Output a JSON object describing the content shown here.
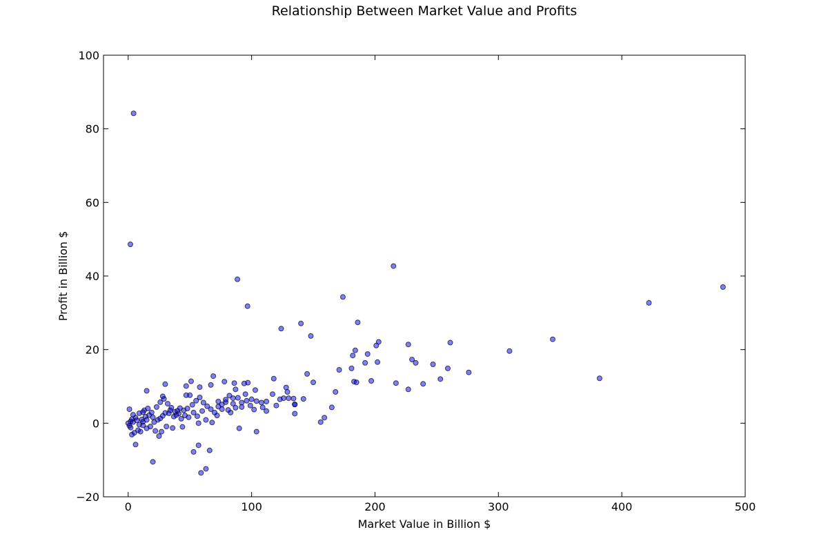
{
  "chart_data": {
    "type": "scatter",
    "title": "Relationship Between Market Value and Profits",
    "xlabel": "Market Value in Billion $",
    "ylabel": "Profit in Billion $",
    "xlim": [
      -20,
      500
    ],
    "ylim": [
      -20,
      100
    ],
    "xticks": [
      0,
      100,
      200,
      300,
      400,
      500
    ],
    "yticks": [
      -20,
      0,
      20,
      40,
      60,
      80,
      100
    ],
    "xtick_labels": [
      "0",
      "100",
      "200",
      "300",
      "400",
      "500"
    ],
    "ytick_labels": [
      "−20",
      "0",
      "20",
      "40",
      "60",
      "80",
      "100"
    ],
    "grid": false,
    "marker_color": "#0000ff",
    "marker_alpha": 0.5,
    "series": [
      {
        "points": [
          [
            4.4,
            84.2
          ],
          [
            1.8,
            48.6
          ],
          [
            215,
            42.7
          ],
          [
            482,
            37.0
          ],
          [
            422,
            32.7
          ],
          [
            88.5,
            39.1
          ],
          [
            96.7,
            31.8
          ],
          [
            174,
            34.3
          ],
          [
            140,
            27.1
          ],
          [
            124,
            25.7
          ],
          [
            148,
            23.7
          ],
          [
            344,
            22.8
          ],
          [
            261,
            21.9
          ],
          [
            203,
            22.1
          ],
          [
            227,
            21.4
          ],
          [
            186,
            27.4
          ],
          [
            201,
            21.1
          ],
          [
            309,
            19.6
          ],
          [
            184,
            19.8
          ],
          [
            194,
            18.8
          ],
          [
            182,
            18.4
          ],
          [
            230,
            17.3
          ],
          [
            233,
            16.4
          ],
          [
            202,
            16.6
          ],
          [
            192,
            16.4
          ],
          [
            247,
            16.0
          ],
          [
            259,
            14.9
          ],
          [
            276,
            13.8
          ],
          [
            181,
            14.9
          ],
          [
            171,
            14.5
          ],
          [
            253,
            12.0
          ],
          [
            382,
            12.2
          ],
          [
            197,
            11.5
          ],
          [
            183,
            11.3
          ],
          [
            185,
            11.1
          ],
          [
            217,
            10.9
          ],
          [
            239,
            10.7
          ],
          [
            227,
            9.2
          ],
          [
            145,
            13.4
          ],
          [
            150,
            11.1
          ],
          [
            128,
            9.7
          ],
          [
            129,
            8.5
          ],
          [
            168,
            8.5
          ],
          [
            142,
            6.6
          ],
          [
            134,
            6.7
          ],
          [
            135,
            5.1
          ],
          [
            165,
            4.3
          ],
          [
            135,
            2.6
          ],
          [
            159,
            1.5
          ],
          [
            156,
            0.3
          ],
          [
            118,
            12.1
          ],
          [
            97,
            11.0
          ],
          [
            94,
            10.8
          ],
          [
            86,
            10.9
          ],
          [
            78,
            11.3
          ],
          [
            69,
            12.8
          ],
          [
            67,
            10.4
          ],
          [
            58,
            9.8
          ],
          [
            51,
            11.4
          ],
          [
            47,
            10.1
          ],
          [
            30,
            10.6
          ],
          [
            15,
            8.8
          ],
          [
            87,
            9.2
          ],
          [
            95,
            7.9
          ],
          [
            100,
            6.5
          ],
          [
            104,
            6.0
          ],
          [
            108,
            5.6
          ],
          [
            112,
            5.9
          ],
          [
            117,
            7.9
          ],
          [
            120,
            4.8
          ],
          [
            123,
            6.5
          ],
          [
            126,
            6.8
          ],
          [
            130,
            6.8
          ],
          [
            135,
            5.1
          ],
          [
            109,
            4.3
          ],
          [
            112,
            3.3
          ],
          [
            102,
            3.7
          ],
          [
            92,
            4.4
          ],
          [
            83,
            2.9
          ],
          [
            76,
            3.8
          ],
          [
            72,
            2.1
          ],
          [
            68,
            0.2
          ],
          [
            63,
            0.9
          ],
          [
            57,
            0.0
          ],
          [
            73,
            5.9
          ],
          [
            79,
            5.7
          ],
          [
            85,
            6.8
          ],
          [
            89,
            6.9
          ],
          [
            92,
            5.6
          ],
          [
            96,
            6.1
          ],
          [
            99,
            4.8
          ],
          [
            103,
            9.0
          ],
          [
            81,
            3.6
          ],
          [
            87,
            4.2
          ],
          [
            90,
            -1.4
          ],
          [
            104,
            -2.3
          ],
          [
            53,
            -7.8
          ],
          [
            57,
            -6.0
          ],
          [
            66,
            -7.4
          ],
          [
            59,
            -13.5
          ],
          [
            63,
            -12.4
          ],
          [
            20,
            -10.5
          ],
          [
            6,
            -5.8
          ],
          [
            25,
            -3.5
          ],
          [
            44,
            -1.0
          ],
          [
            36,
            -1.3
          ],
          [
            31,
            -0.9
          ],
          [
            10,
            -2.3
          ],
          [
            12,
            -0.6
          ],
          [
            3,
            -3.1
          ],
          [
            5,
            -2.6
          ],
          [
            8,
            -1.9
          ],
          [
            15,
            -1.4
          ],
          [
            18,
            -0.9
          ],
          [
            22,
            -2.1
          ],
          [
            27,
            -2.3
          ],
          [
            1,
            3.8
          ],
          [
            4,
            2.3
          ],
          [
            6,
            1.5
          ],
          [
            9,
            2.7
          ],
          [
            13,
            3.5
          ],
          [
            16,
            4.0
          ],
          [
            19,
            2.9
          ],
          [
            23,
            4.4
          ],
          [
            26,
            5.7
          ],
          [
            29,
            6.6
          ],
          [
            32,
            5.3
          ],
          [
            35,
            4.2
          ],
          [
            38,
            3.1
          ],
          [
            41,
            2.6
          ],
          [
            45,
            3.5
          ],
          [
            48,
            4.0
          ],
          [
            52,
            5.0
          ],
          [
            55,
            6.1
          ],
          [
            58,
            7.0
          ],
          [
            61,
            5.6
          ],
          [
            64,
            4.6
          ],
          [
            67,
            3.8
          ],
          [
            70,
            2.9
          ],
          [
            73,
            4.5
          ],
          [
            76,
            5.1
          ],
          [
            79,
            6.4
          ],
          [
            82,
            7.5
          ],
          [
            85,
            5.3
          ],
          [
            11,
            1.0
          ],
          [
            14,
            1.8
          ],
          [
            17,
            2.2
          ],
          [
            20,
            1.6
          ],
          [
            24,
            0.9
          ],
          [
            28,
            2.0
          ],
          [
            33,
            2.7
          ],
          [
            37,
            1.8
          ],
          [
            40,
            3.4
          ],
          [
            43,
            1.2
          ],
          [
            46,
            2.1
          ],
          [
            49,
            1.6
          ],
          [
            53,
            2.9
          ],
          [
            56,
            1.9
          ],
          [
            60,
            3.3
          ],
          [
            2,
            0.5
          ],
          [
            3,
            1.1
          ],
          [
            0,
            0.0
          ],
          [
            1,
            -0.7
          ],
          [
            2,
            -1.2
          ],
          [
            4,
            0.3
          ],
          [
            7,
            0.8
          ],
          [
            9,
            -0.4
          ],
          [
            12,
            0.4
          ],
          [
            15,
            0.9
          ],
          [
            21,
            0.3
          ],
          [
            26,
            1.3
          ],
          [
            30,
            2.8
          ],
          [
            34,
            3.5
          ],
          [
            39,
            2.2
          ],
          [
            42,
            4.1
          ],
          [
            50,
            7.6
          ],
          [
            47,
            7.6
          ],
          [
            28,
            7.3
          ],
          [
            12,
            3.0
          ]
        ]
      }
    ]
  }
}
